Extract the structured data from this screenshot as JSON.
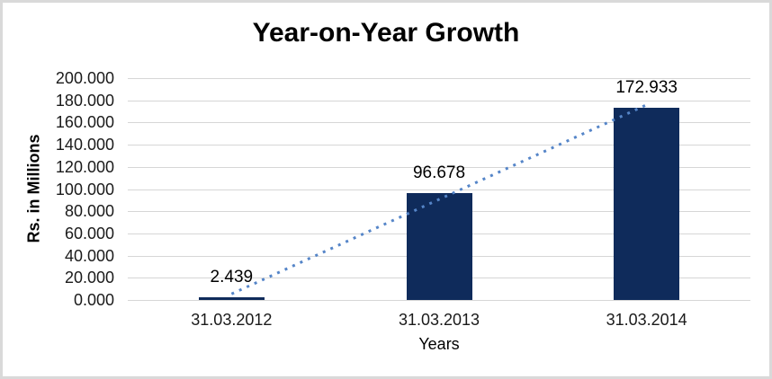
{
  "frame": {
    "background": "#FFFFFF",
    "border_color": "#D9D9D9"
  },
  "chart_data": {
    "type": "bar",
    "title": "Year-on-Year Growth",
    "xlabel": "Years",
    "ylabel": "Rs. in Millions",
    "categories": [
      "31.03.2012",
      "31.03.2013",
      "31.03.2014"
    ],
    "values": [
      2.439,
      96.678,
      172.933
    ],
    "data_labels": [
      "2.439",
      "96.678",
      "172.933"
    ],
    "ylim": [
      0,
      200
    ],
    "ytick_values": [
      0,
      20,
      40,
      60,
      80,
      100,
      120,
      140,
      160,
      180,
      200
    ],
    "ytick_labels": [
      "0.000",
      "20.000",
      "40.000",
      "60.000",
      "80.000",
      "100.000",
      "120.000",
      "140.000",
      "160.000",
      "180.000",
      "200.000"
    ],
    "grid": true,
    "legend_position": "none",
    "bar_color": "#0F2B5B",
    "gridline_color": "#D6D6D6",
    "trendline": {
      "type": "linear",
      "style": "dotted",
      "color": "#5585C8"
    }
  }
}
